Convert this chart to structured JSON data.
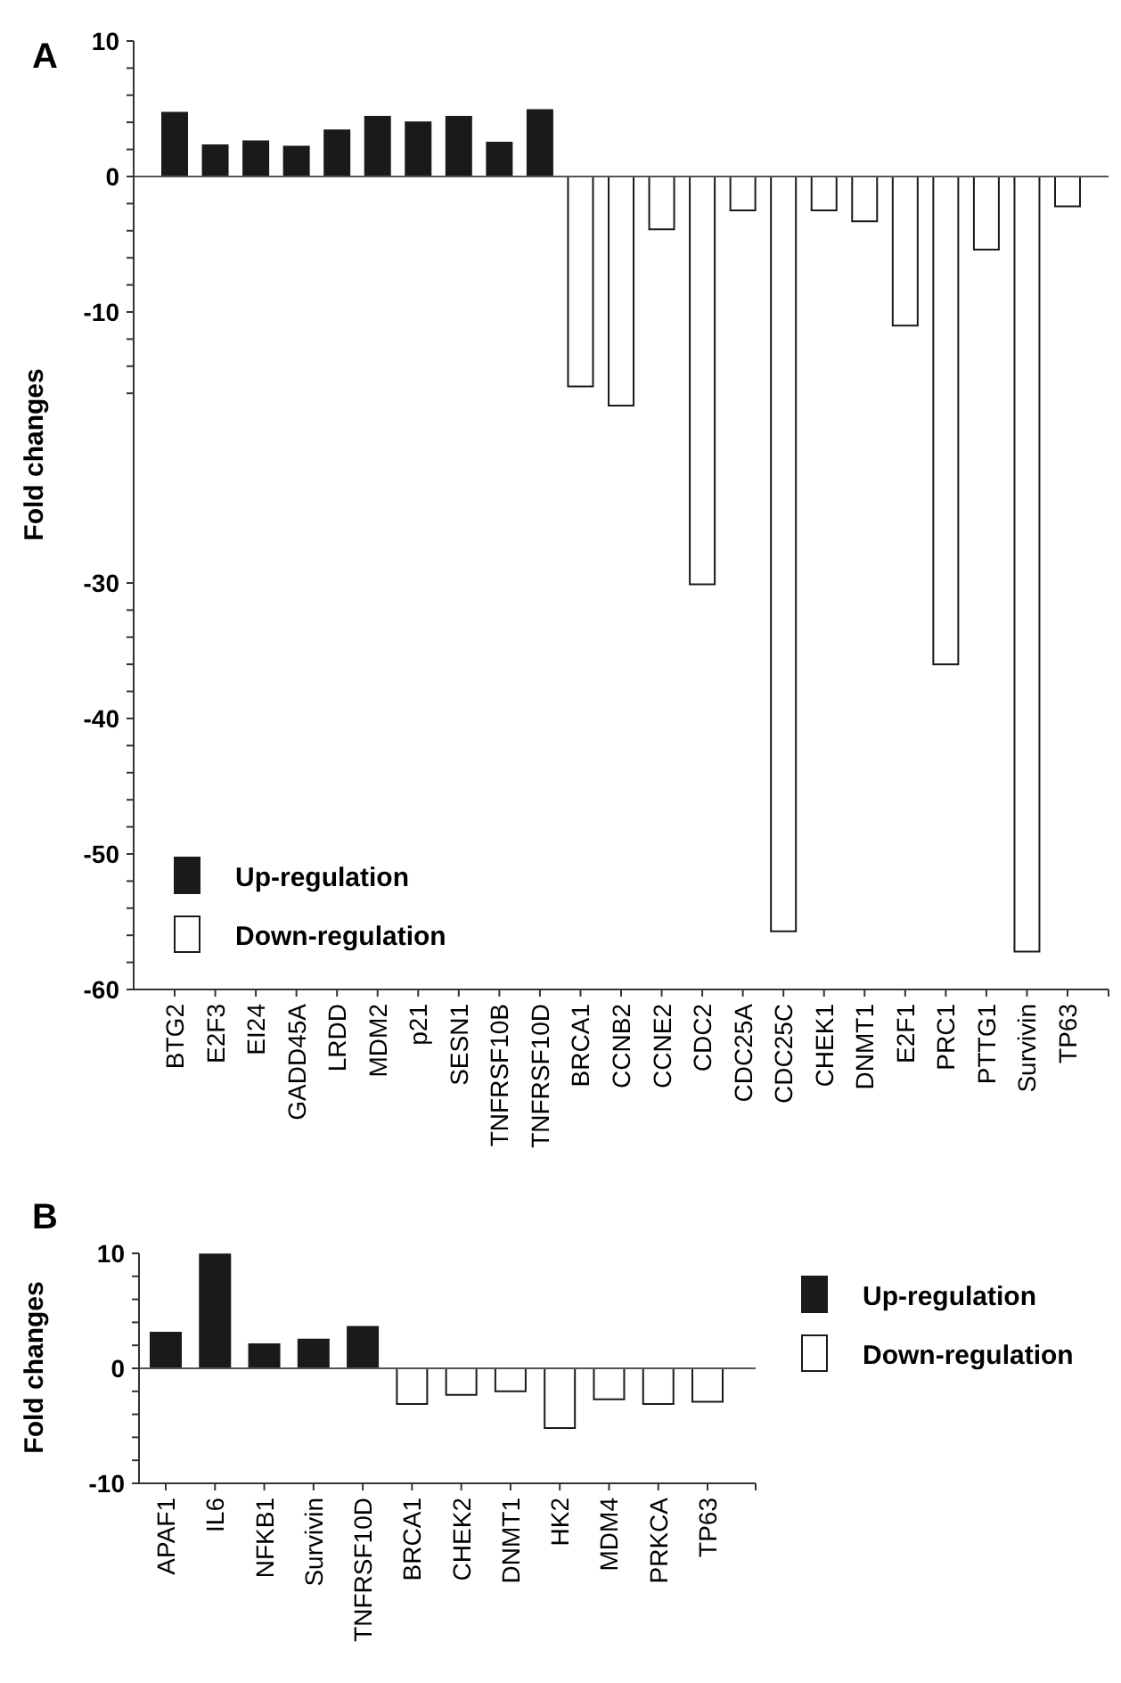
{
  "chart_data": [
    {
      "type": "bar",
      "title": "A",
      "ylabel": "Fold changes",
      "categories": [
        "BTG2",
        "E2F3",
        "EI24",
        "GADD45A",
        "LRDD",
        "MDM2",
        "p21",
        "SESN1",
        "TNFRSF10B",
        "TNFRSF10D",
        "BRCA1",
        "CCNB2",
        "CCNE2",
        "CDC2",
        "CDC25A",
        "CDC25C",
        "CHEK1",
        "DNMT1",
        "E2F1",
        "PRC1",
        "PTTG1",
        "Survivin",
        "TP63"
      ],
      "series": [
        {
          "name": "Up-regulation",
          "color": "#1a1a1a",
          "values": [
            4.7,
            2.3,
            2.6,
            2.2,
            3.4,
            4.4,
            4.0,
            4.4,
            2.5,
            4.9,
            null,
            null,
            null,
            null,
            null,
            null,
            null,
            null,
            null,
            null,
            null,
            null,
            null
          ]
        },
        {
          "name": "Down-regulation",
          "color": "#ffffff",
          "values": [
            null,
            null,
            null,
            null,
            null,
            null,
            null,
            null,
            null,
            null,
            -15.5,
            -16.9,
            -3.9,
            -30.1,
            -2.5,
            -55.7,
            -2.5,
            -3.3,
            -11.0,
            -36.0,
            -5.4,
            -57.2,
            -2.2
          ]
        }
      ],
      "ylim": [
        -60,
        10
      ],
      "yticks": [
        10,
        {
          "value": 8,
          "label": null
        },
        {
          "value": 6,
          "label": null
        },
        {
          "value": 4,
          "label": null
        },
        {
          "value": 2,
          "label": null
        },
        0,
        {
          "value": -2,
          "label": null
        },
        {
          "value": -4,
          "label": null
        },
        {
          "value": -6,
          "label": null
        },
        {
          "value": -8,
          "label": null
        },
        -10,
        {
          "value": -12,
          "label": null
        },
        {
          "value": -14,
          "label": null
        },
        {
          "value": -16,
          "label": null
        },
        -30,
        {
          "value": -32,
          "label": null
        },
        {
          "value": -34,
          "label": null
        },
        {
          "value": -36,
          "label": null
        },
        {
          "value": -38,
          "label": null
        },
        -40,
        {
          "value": -42,
          "label": null
        },
        {
          "value": -44,
          "label": null
        },
        {
          "value": -46,
          "label": null
        },
        {
          "value": -48,
          "label": null
        },
        -50,
        {
          "value": -52,
          "label": null
        },
        {
          "value": -54,
          "label": null
        },
        {
          "value": -56,
          "label": null
        },
        {
          "value": -58,
          "label": null
        },
        -60
      ],
      "ref_lines": [
        {
          "axis": "y",
          "value": 0,
          "color": "#555555"
        }
      ],
      "legend": "bottom left",
      "grid": false
    },
    {
      "type": "bar",
      "title": "B",
      "ylabel": "Fold changes",
      "categories": [
        "APAF1",
        "IL6",
        "NFKB1",
        "Survivin",
        "TNFRSF10D",
        "BRCA1",
        "CHEK2",
        "DNMT1",
        "HK2",
        "MDM4",
        "PRKCA",
        "TP63"
      ],
      "series": [
        {
          "name": "Up-regulation",
          "color": "#1a1a1a",
          "values": [
            3.1,
            9.9,
            2.1,
            2.5,
            3.6,
            null,
            null,
            null,
            null,
            null,
            null,
            null
          ]
        },
        {
          "name": "Down-regulation",
          "color": "#ffffff",
          "values": [
            null,
            null,
            null,
            null,
            null,
            -3.1,
            -2.3,
            -2.0,
            -5.2,
            -2.7,
            -3.1,
            -2.9
          ]
        }
      ],
      "ylim": [
        -10,
        10
      ],
      "yticks": [
        10,
        {
          "value": 8,
          "label": null
        },
        {
          "value": 6,
          "label": null
        },
        {
          "value": 4,
          "label": null
        },
        {
          "value": 2,
          "label": null
        },
        0,
        {
          "value": -2,
          "label": null
        },
        {
          "value": -4,
          "label": null
        },
        {
          "value": -6,
          "label": null
        },
        {
          "value": -8,
          "label": null
        },
        -10
      ],
      "ref_lines": [
        {
          "axis": "y",
          "value": 0,
          "color": "#555555"
        }
      ],
      "legend": "right",
      "grid": false
    }
  ]
}
